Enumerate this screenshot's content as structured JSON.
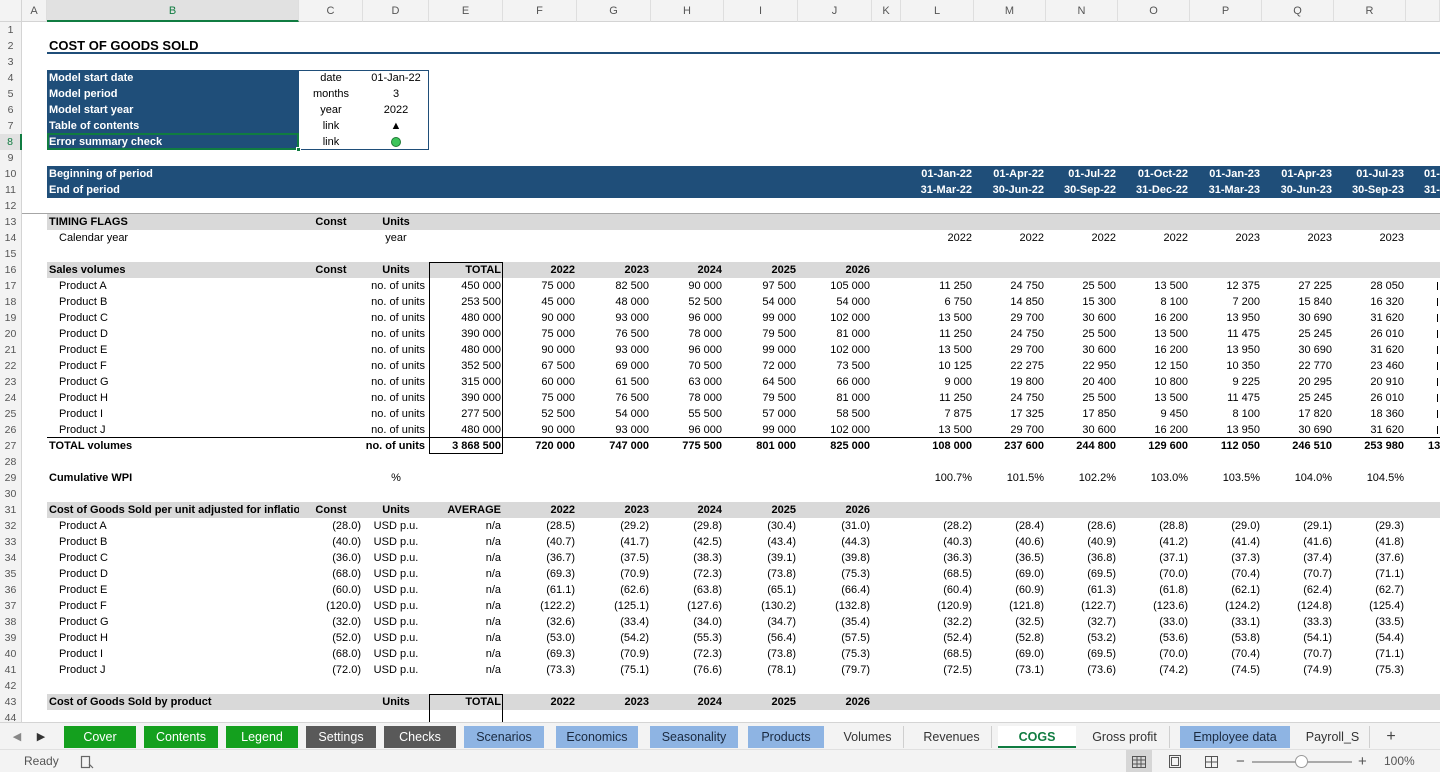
{
  "colors": {
    "navy": "#1f4e79",
    "gray": "#d9d9d9",
    "green_tab": "#14a01e",
    "dark_tab": "#595959",
    "blue_tab": "#8eb4e3",
    "excel_green": "#107c41"
  },
  "columns": [
    "A",
    "B",
    "C",
    "D",
    "E",
    "F",
    "G",
    "H",
    "I",
    "J",
    "K",
    "L",
    "M",
    "N",
    "O",
    "P",
    "Q",
    "R"
  ],
  "selected_column": "B",
  "rows": [
    "1",
    "2",
    "3",
    "4",
    "5",
    "6",
    "7",
    "8",
    "9",
    "10",
    "11",
    "12",
    "13",
    "14",
    "15",
    "16",
    "17",
    "18",
    "19",
    "20",
    "21",
    "22",
    "23",
    "24",
    "25",
    "26",
    "27",
    "28",
    "29",
    "30",
    "31",
    "32",
    "33",
    "34",
    "35",
    "36",
    "37",
    "38",
    "39",
    "40",
    "41",
    "42",
    "43",
    "44"
  ],
  "selected_row": "8",
  "title": "COST OF GOODS SOLD",
  "settings": [
    {
      "label": "Model start date",
      "unit": "date",
      "value": "01-Jan-22"
    },
    {
      "label": "Model period",
      "unit": "months",
      "value": "3"
    },
    {
      "label": "Model start year",
      "unit": "year",
      "value": "2022"
    },
    {
      "label": "Table of contents",
      "unit": "link",
      "value": "▲"
    },
    {
      "label": "Error summary check",
      "unit": "link",
      "value": ""
    }
  ],
  "period": {
    "begin_label": "Beginning of period",
    "end_label": "End of period",
    "begin": [
      "01-Jan-22",
      "01-Apr-22",
      "01-Jul-22",
      "01-Oct-22",
      "01-Jan-23",
      "01-Apr-23",
      "01-Jul-23",
      "01-"
    ],
    "end": [
      "31-Mar-22",
      "30-Jun-22",
      "30-Sep-22",
      "31-Dec-22",
      "31-Mar-23",
      "30-Jun-23",
      "30-Sep-23",
      "31-"
    ]
  },
  "timing": {
    "header": "TIMING FLAGS",
    "const": "Const",
    "units": "Units",
    "row_label": "Calendar year",
    "row_unit": "year",
    "values": [
      "2022",
      "2022",
      "2022",
      "2022",
      "2023",
      "2023",
      "2023"
    ]
  },
  "years": [
    "2022",
    "2023",
    "2024",
    "2025",
    "2026"
  ],
  "sales": {
    "header": "Sales volumes",
    "const": "Const",
    "units": "Units",
    "total_label": "TOTAL",
    "rows": [
      {
        "name": "Product A",
        "unit": "no. of units",
        "total": "450 000",
        "annual": [
          "75 000",
          "82 500",
          "90 000",
          "97 500",
          "105 000"
        ],
        "quarterly": [
          "11 250",
          "24 750",
          "25 500",
          "13 500",
          "12 375",
          "27 225",
          "28 050"
        ]
      },
      {
        "name": "Product B",
        "unit": "no. of units",
        "total": "253 500",
        "annual": [
          "45 000",
          "48 000",
          "52 500",
          "54 000",
          "54 000"
        ],
        "quarterly": [
          "6 750",
          "14 850",
          "15 300",
          "8 100",
          "7 200",
          "15 840",
          "16 320"
        ]
      },
      {
        "name": "Product C",
        "unit": "no. of units",
        "total": "480 000",
        "annual": [
          "90 000",
          "93 000",
          "96 000",
          "99 000",
          "102 000"
        ],
        "quarterly": [
          "13 500",
          "29 700",
          "30 600",
          "16 200",
          "13 950",
          "30 690",
          "31 620"
        ]
      },
      {
        "name": "Product D",
        "unit": "no. of units",
        "total": "390 000",
        "annual": [
          "75 000",
          "76 500",
          "78 000",
          "79 500",
          "81 000"
        ],
        "quarterly": [
          "11 250",
          "24 750",
          "25 500",
          "13 500",
          "11 475",
          "25 245",
          "26 010"
        ]
      },
      {
        "name": "Product E",
        "unit": "no. of units",
        "total": "480 000",
        "annual": [
          "90 000",
          "93 000",
          "96 000",
          "99 000",
          "102 000"
        ],
        "quarterly": [
          "13 500",
          "29 700",
          "30 600",
          "16 200",
          "13 950",
          "30 690",
          "31 620"
        ]
      },
      {
        "name": "Product F",
        "unit": "no. of units",
        "total": "352 500",
        "annual": [
          "67 500",
          "69 000",
          "70 500",
          "72 000",
          "73 500"
        ],
        "quarterly": [
          "10 125",
          "22 275",
          "22 950",
          "12 150",
          "10 350",
          "22 770",
          "23 460"
        ]
      },
      {
        "name": "Product G",
        "unit": "no. of units",
        "total": "315 000",
        "annual": [
          "60 000",
          "61 500",
          "63 000",
          "64 500",
          "66 000"
        ],
        "quarterly": [
          "9 000",
          "19 800",
          "20 400",
          "10 800",
          "9 225",
          "20 295",
          "20 910"
        ]
      },
      {
        "name": "Product H",
        "unit": "no. of units",
        "total": "390 000",
        "annual": [
          "75 000",
          "76 500",
          "78 000",
          "79 500",
          "81 000"
        ],
        "quarterly": [
          "11 250",
          "24 750",
          "25 500",
          "13 500",
          "11 475",
          "25 245",
          "26 010"
        ]
      },
      {
        "name": "Product I",
        "unit": "no. of units",
        "total": "277 500",
        "annual": [
          "52 500",
          "54 000",
          "55 500",
          "57 000",
          "58 500"
        ],
        "quarterly": [
          "7 875",
          "17 325",
          "17 850",
          "9 450",
          "8 100",
          "17 820",
          "18 360"
        ]
      },
      {
        "name": "Product J",
        "unit": "no. of units",
        "total": "480 000",
        "annual": [
          "90 000",
          "93 000",
          "96 000",
          "99 000",
          "102 000"
        ],
        "quarterly": [
          "13 500",
          "29 700",
          "30 600",
          "16 200",
          "13 950",
          "30 690",
          "31 620"
        ]
      }
    ],
    "total_row": {
      "name": "TOTAL volumes",
      "unit": "no. of units",
      "total": "3 868 500",
      "annual": [
        "720 000",
        "747 000",
        "775 500",
        "801 000",
        "825 000"
      ],
      "quarterly": [
        "108 000",
        "237 600",
        "244 800",
        "129 600",
        "112 050",
        "246 510",
        "253 980",
        "13"
      ]
    }
  },
  "wpi": {
    "label": "Cumulative WPI",
    "unit": "%",
    "values": [
      "100.7%",
      "101.5%",
      "102.2%",
      "103.0%",
      "103.5%",
      "104.0%",
      "104.5%"
    ]
  },
  "cogs_unit": {
    "header": "Cost of Goods Sold per unit adjusted for inflation",
    "const": "Const",
    "units": "Units",
    "avg_label": "AVERAGE",
    "rows": [
      {
        "name": "Product A",
        "const": "(28.0)",
        "unit": "USD p.u.",
        "avg": "n/a",
        "annual": [
          "(28.5)",
          "(29.2)",
          "(29.8)",
          "(30.4)",
          "(31.0)"
        ],
        "quarterly": [
          "(28.2)",
          "(28.4)",
          "(28.6)",
          "(28.8)",
          "(29.0)",
          "(29.1)",
          "(29.3)"
        ]
      },
      {
        "name": "Product B",
        "const": "(40.0)",
        "unit": "USD p.u.",
        "avg": "n/a",
        "annual": [
          "(40.7)",
          "(41.7)",
          "(42.5)",
          "(43.4)",
          "(44.3)"
        ],
        "quarterly": [
          "(40.3)",
          "(40.6)",
          "(40.9)",
          "(41.2)",
          "(41.4)",
          "(41.6)",
          "(41.8)"
        ]
      },
      {
        "name": "Product C",
        "const": "(36.0)",
        "unit": "USD p.u.",
        "avg": "n/a",
        "annual": [
          "(36.7)",
          "(37.5)",
          "(38.3)",
          "(39.1)",
          "(39.8)"
        ],
        "quarterly": [
          "(36.3)",
          "(36.5)",
          "(36.8)",
          "(37.1)",
          "(37.3)",
          "(37.4)",
          "(37.6)"
        ]
      },
      {
        "name": "Product D",
        "const": "(68.0)",
        "unit": "USD p.u.",
        "avg": "n/a",
        "annual": [
          "(69.3)",
          "(70.9)",
          "(72.3)",
          "(73.8)",
          "(75.3)"
        ],
        "quarterly": [
          "(68.5)",
          "(69.0)",
          "(69.5)",
          "(70.0)",
          "(70.4)",
          "(70.7)",
          "(71.1)"
        ]
      },
      {
        "name": "Product E",
        "const": "(60.0)",
        "unit": "USD p.u.",
        "avg": "n/a",
        "annual": [
          "(61.1)",
          "(62.6)",
          "(63.8)",
          "(65.1)",
          "(66.4)"
        ],
        "quarterly": [
          "(60.4)",
          "(60.9)",
          "(61.3)",
          "(61.8)",
          "(62.1)",
          "(62.4)",
          "(62.7)"
        ]
      },
      {
        "name": "Product F",
        "const": "(120.0)",
        "unit": "USD p.u.",
        "avg": "n/a",
        "annual": [
          "(122.2)",
          "(125.1)",
          "(127.6)",
          "(130.2)",
          "(132.8)"
        ],
        "quarterly": [
          "(120.9)",
          "(121.8)",
          "(122.7)",
          "(123.6)",
          "(124.2)",
          "(124.8)",
          "(125.4)"
        ]
      },
      {
        "name": "Product G",
        "const": "(32.0)",
        "unit": "USD p.u.",
        "avg": "n/a",
        "annual": [
          "(32.6)",
          "(33.4)",
          "(34.0)",
          "(34.7)",
          "(35.4)"
        ],
        "quarterly": [
          "(32.2)",
          "(32.5)",
          "(32.7)",
          "(33.0)",
          "(33.1)",
          "(33.3)",
          "(33.5)"
        ]
      },
      {
        "name": "Product H",
        "const": "(52.0)",
        "unit": "USD p.u.",
        "avg": "n/a",
        "annual": [
          "(53.0)",
          "(54.2)",
          "(55.3)",
          "(56.4)",
          "(57.5)"
        ],
        "quarterly": [
          "(52.4)",
          "(52.8)",
          "(53.2)",
          "(53.6)",
          "(53.8)",
          "(54.1)",
          "(54.4)"
        ]
      },
      {
        "name": "Product I",
        "const": "(68.0)",
        "unit": "USD p.u.",
        "avg": "n/a",
        "annual": [
          "(69.3)",
          "(70.9)",
          "(72.3)",
          "(73.8)",
          "(75.3)"
        ],
        "quarterly": [
          "(68.5)",
          "(69.0)",
          "(69.5)",
          "(70.0)",
          "(70.4)",
          "(70.7)",
          "(71.1)"
        ]
      },
      {
        "name": "Product J",
        "const": "(72.0)",
        "unit": "USD p.u.",
        "avg": "n/a",
        "annual": [
          "(73.3)",
          "(75.1)",
          "(76.6)",
          "(78.1)",
          "(79.7)"
        ],
        "quarterly": [
          "(72.5)",
          "(73.1)",
          "(73.6)",
          "(74.2)",
          "(74.5)",
          "(74.9)",
          "(75.3)"
        ]
      }
    ]
  },
  "cogs_product": {
    "header": "Cost of Goods Sold by product",
    "units": "Units",
    "total_label": "TOTAL"
  },
  "tabs": [
    {
      "label": "Cover",
      "style": "green"
    },
    {
      "label": "Contents",
      "style": "green"
    },
    {
      "label": "Legend",
      "style": "green"
    },
    {
      "label": "Settings",
      "style": "dark"
    },
    {
      "label": "Checks",
      "style": "dark"
    },
    {
      "label": "Scenarios",
      "style": "blue"
    },
    {
      "label": "Economics",
      "style": "blue"
    },
    {
      "label": "Seasonality",
      "style": "blue"
    },
    {
      "label": "Products",
      "style": "blue"
    },
    {
      "label": "Volumes",
      "style": "plain"
    },
    {
      "label": "Revenues",
      "style": "plain"
    },
    {
      "label": "COGS",
      "style": "active"
    },
    {
      "label": "Gross profit",
      "style": "plain"
    },
    {
      "label": "Employee data",
      "style": "blue"
    },
    {
      "label": "Payroll_S",
      "style": "plain"
    }
  ],
  "add_sheet": "+",
  "status": {
    "ready": "Ready",
    "zoom": "100%"
  }
}
